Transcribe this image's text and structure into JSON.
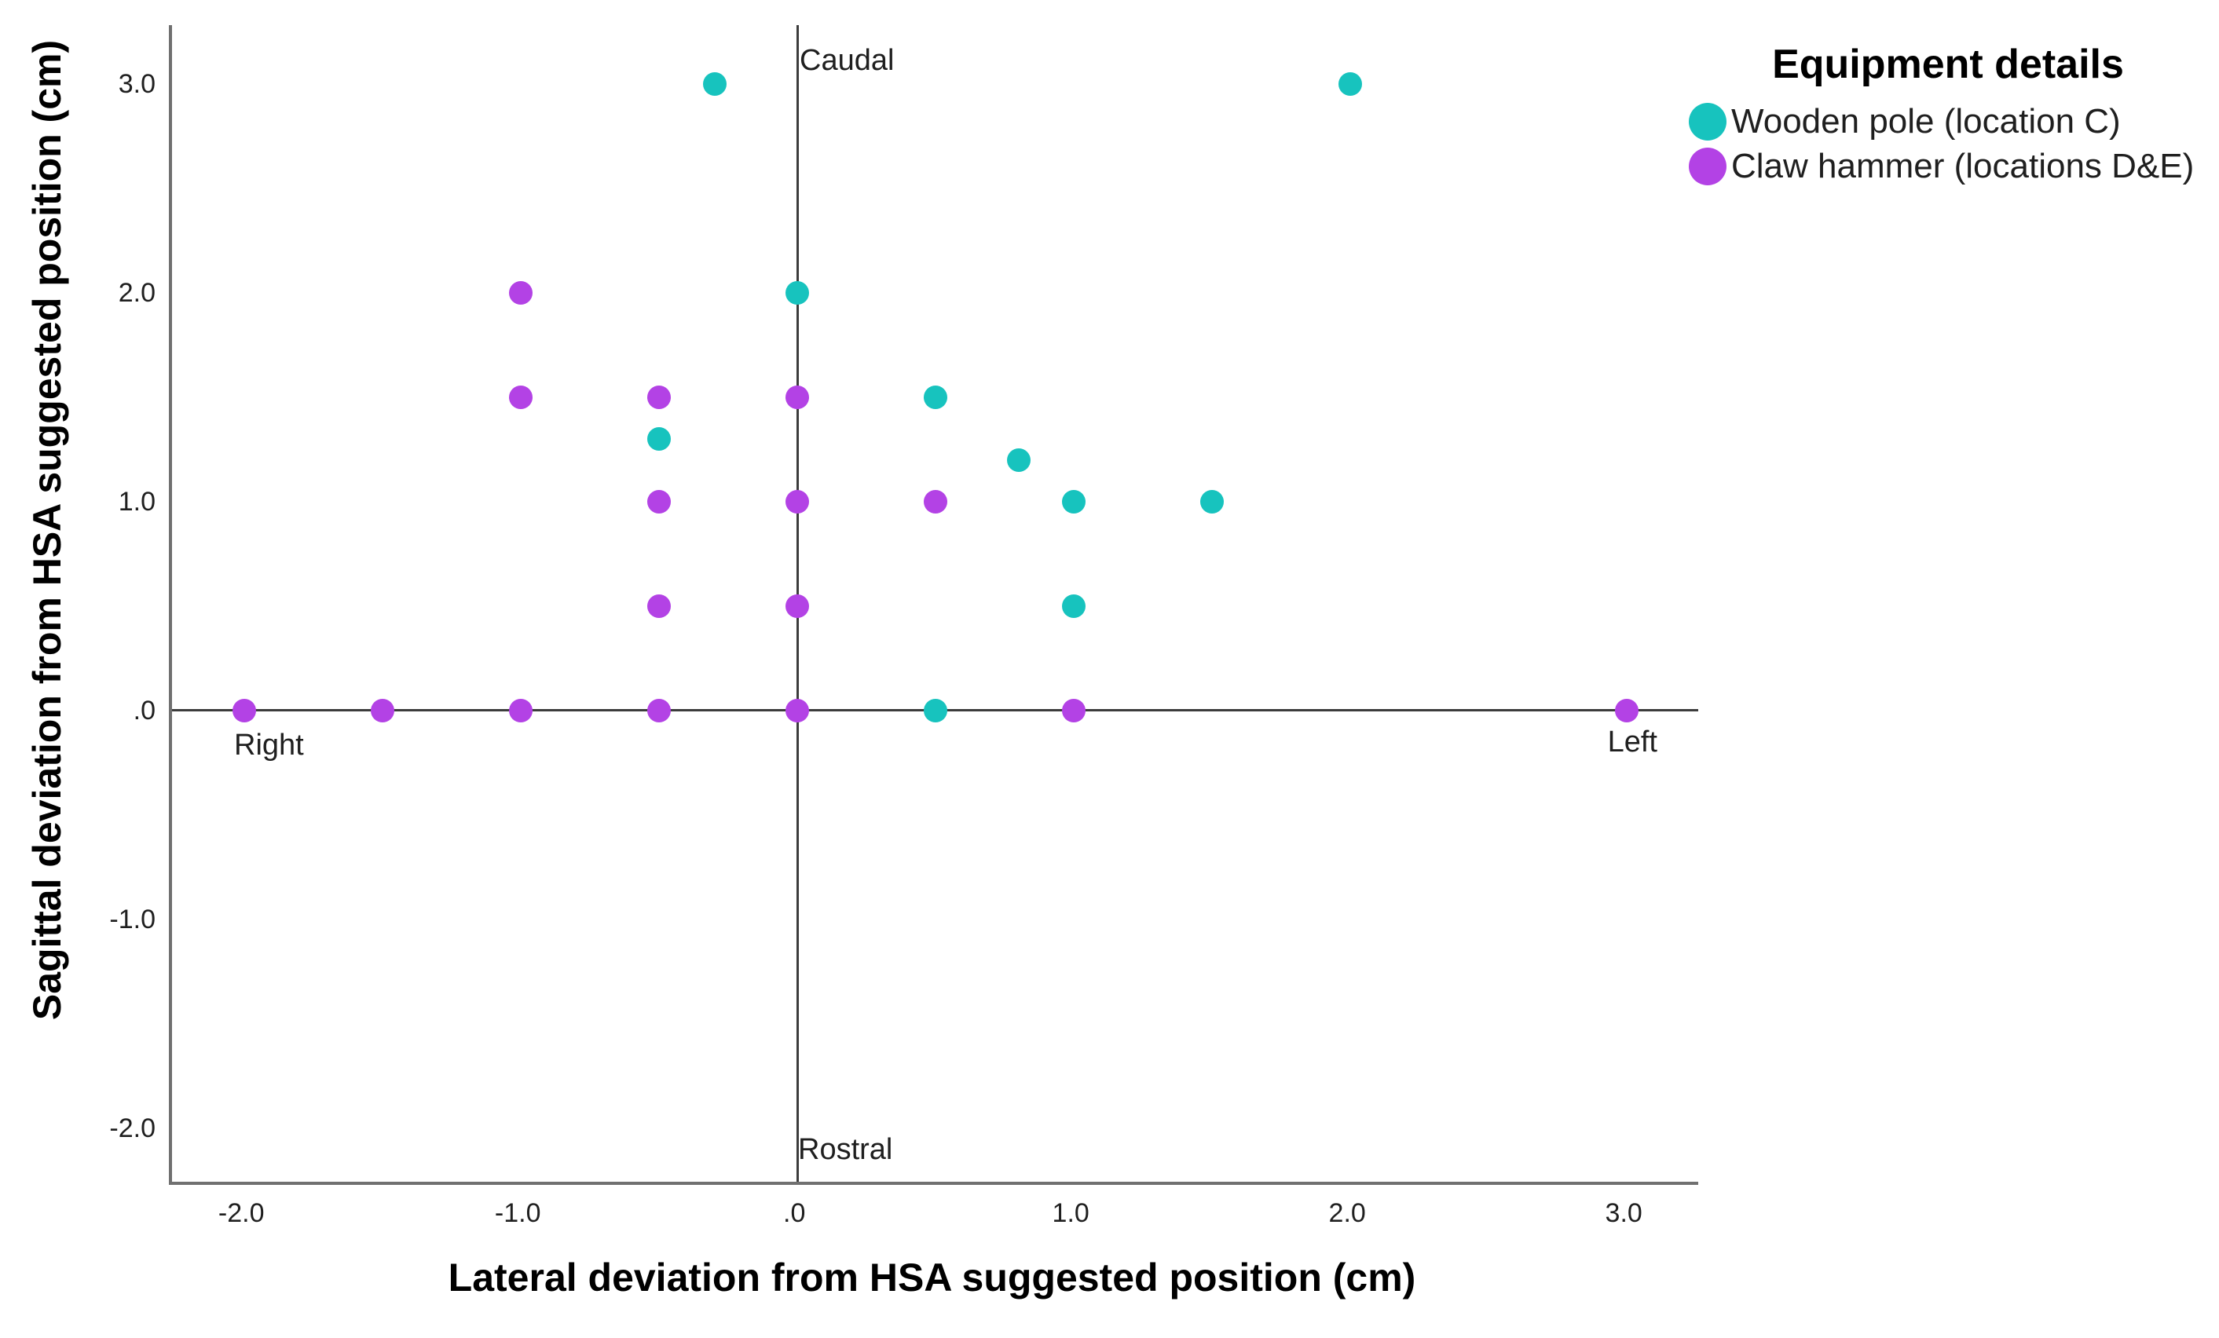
{
  "colors": {
    "teal": "#17C3BE",
    "purple": "#B342E5",
    "frame": "#707070",
    "axis_line": "#3C3C3C",
    "tick_text": "#1F1F1F",
    "title_text": "#000000"
  },
  "chart_data": {
    "type": "scatter",
    "title": "",
    "xlabel": "Lateral deviation from HSA suggested position (cm)",
    "ylabel": "Sagittal deviation from HSA suggested position (cm)",
    "xlim": [
      -2.262,
      3.258
    ],
    "ylim": [
      -2.256,
      3.282
    ],
    "grid": false,
    "reference_lines": {
      "x": 0,
      "y": 0
    },
    "x_ticks": [
      {
        "value": -2.0,
        "label": "-2.0"
      },
      {
        "value": -1.0,
        "label": "-1.0"
      },
      {
        "value": 0.0,
        "label": ".0"
      },
      {
        "value": 1.0,
        "label": "1.0"
      },
      {
        "value": 2.0,
        "label": "2.0"
      },
      {
        "value": 3.0,
        "label": "3.0"
      }
    ],
    "y_ticks": [
      {
        "value": 3.0,
        "label": "3.0"
      },
      {
        "value": 2.0,
        "label": "2.0"
      },
      {
        "value": 1.0,
        "label": "1.0"
      },
      {
        "value": 0.0,
        "label": ".0"
      },
      {
        "value": -1.0,
        "label": "-1.0"
      },
      {
        "value": -2.0,
        "label": "-2.0"
      }
    ],
    "series": [
      {
        "name": "Wooden pole (location C)",
        "color_key": "teal",
        "points": [
          [
            -0.3,
            3.0
          ],
          [
            2.0,
            3.0
          ],
          [
            0.0,
            2.0
          ],
          [
            0.5,
            1.5
          ],
          [
            -0.5,
            1.3
          ],
          [
            0.8,
            1.2
          ],
          [
            1.0,
            1.0
          ],
          [
            1.5,
            1.0
          ],
          [
            1.0,
            0.5
          ],
          [
            0.5,
            0.0
          ]
        ]
      },
      {
        "name": "Claw hammer (locations D&E)",
        "color_key": "purple",
        "points": [
          [
            -1.0,
            2.0
          ],
          [
            -1.0,
            1.5
          ],
          [
            -0.5,
            1.5
          ],
          [
            0.0,
            1.5
          ],
          [
            -0.5,
            1.0
          ],
          [
            0.0,
            1.0
          ],
          [
            0.5,
            1.0
          ],
          [
            -0.5,
            0.5
          ],
          [
            0.0,
            0.5
          ],
          [
            -2.0,
            0.0
          ],
          [
            -1.5,
            0.0
          ],
          [
            -1.0,
            0.0
          ],
          [
            -0.5,
            0.0
          ],
          [
            0.0,
            0.0
          ],
          [
            1.0,
            0.0
          ],
          [
            3.0,
            0.0
          ]
        ]
      }
    ],
    "legend": {
      "title": "Equipment details",
      "position": "top-right",
      "items": [
        {
          "label": "Wooden pole (location C)",
          "color_key": "teal"
        },
        {
          "label": "Claw hammer (locations D&E)",
          "color_key": "purple"
        }
      ]
    },
    "annotations": {
      "caudal": "Caudal",
      "rostral": "Rostral",
      "right": "Right",
      "left": "Left"
    }
  }
}
